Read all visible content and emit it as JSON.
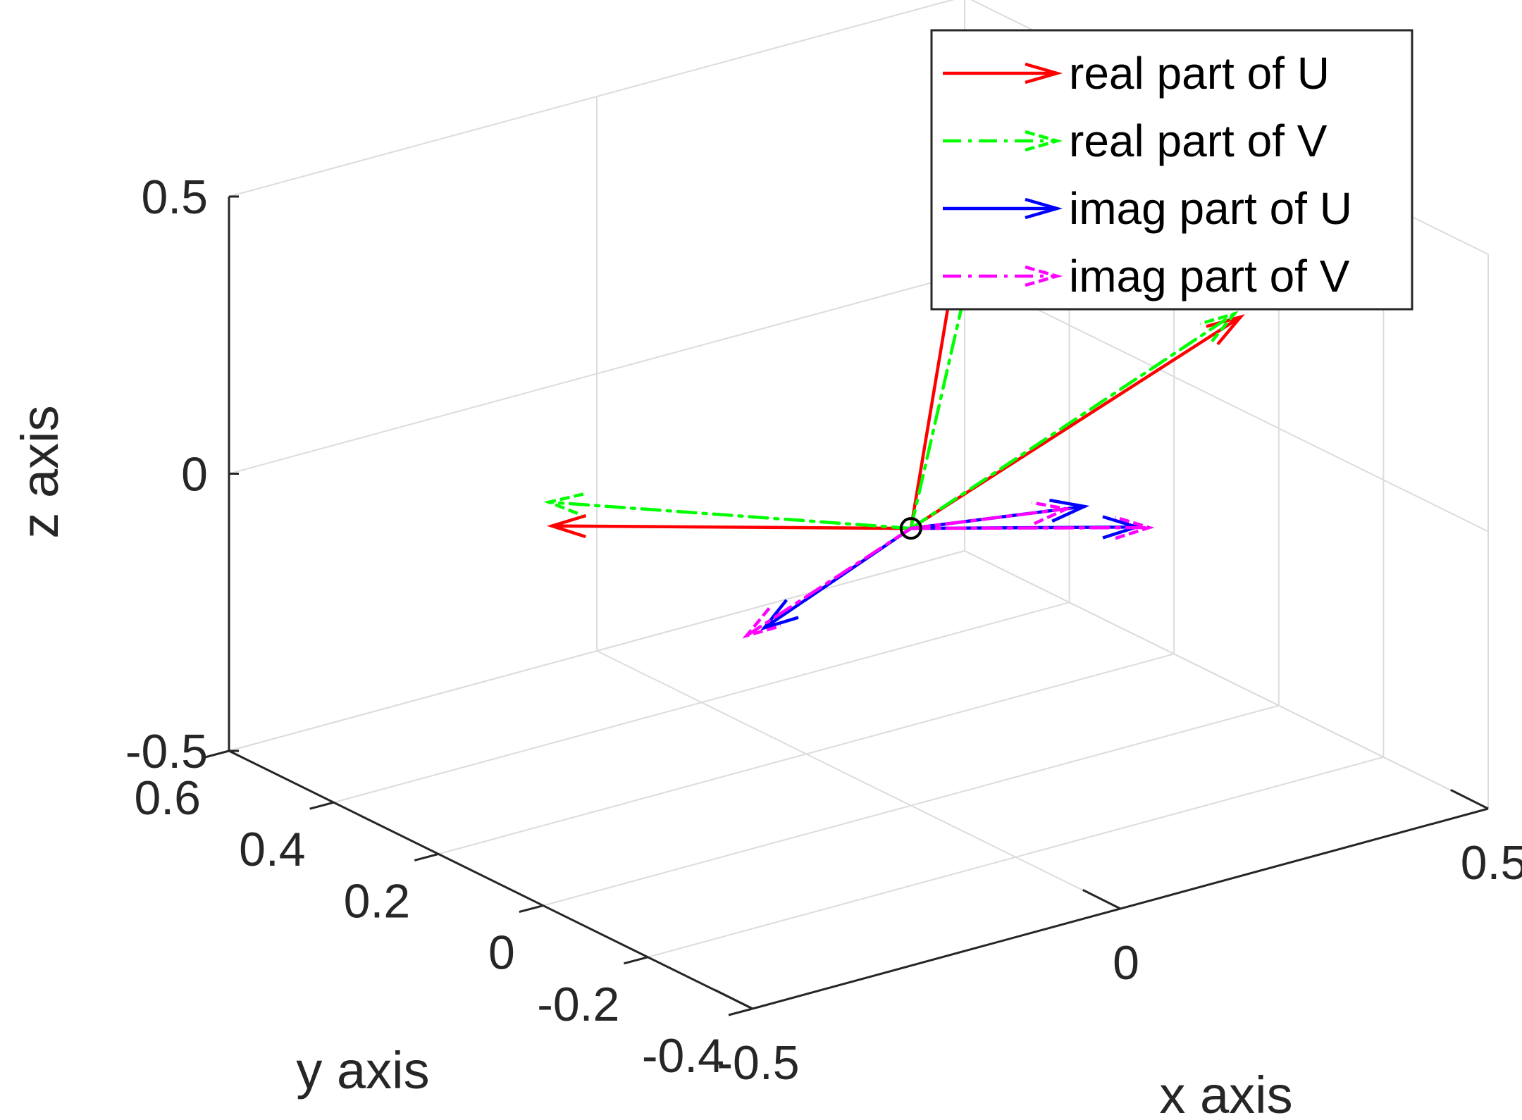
{
  "chart_data": {
    "type": "3d-vector-plot",
    "xlabel": "x axis",
    "ylabel": "y axis",
    "zlabel": "z axis",
    "xlim": [
      -0.5,
      0.5
    ],
    "ylim": [
      -0.4,
      0.6
    ],
    "zlim": [
      -0.5,
      0.5
    ],
    "x_ticks": [
      "-0.5",
      "0",
      "0.5"
    ],
    "y_ticks": [
      "0.6",
      "0.4",
      "0.2",
      "0",
      "-0.2",
      "-0.4"
    ],
    "z_ticks": [
      "0.5",
      "0",
      "-0.5"
    ],
    "grid": true,
    "legend_position": "top-right",
    "origin": [
      0,
      0,
      0
    ],
    "series": [
      {
        "name": "real part of U",
        "color": "#ff0000",
        "linestyle": "solid",
        "vectors": [
          [
            -0.31,
            0.25,
            0.0
          ],
          [
            0.27,
            -0.25,
            0.4
          ],
          [
            0.24,
            0.24,
            0.35
          ]
        ]
      },
      {
        "name": "real part of V",
        "color": "#00ff00",
        "linestyle": "dashdot",
        "vectors": [
          [
            -0.3,
            0.27,
            0.03
          ],
          [
            0.29,
            -0.21,
            0.38
          ],
          [
            0.24,
            0.21,
            0.34
          ]
        ]
      },
      {
        "name": "imag part of U",
        "color": "#0000ff",
        "linestyle": "solid",
        "vectors": [
          [
            0.2,
            -0.15,
            0.0
          ],
          [
            0.05,
            0.35,
            -0.36
          ],
          [
            0.25,
            0.02,
            -0.06
          ]
        ]
      },
      {
        "name": "imag part of V",
        "color": "#ff00ff",
        "linestyle": "dashdot",
        "vectors": [
          [
            0.21,
            -0.16,
            0.0
          ],
          [
            0.04,
            0.37,
            -0.38
          ],
          [
            0.24,
            0.04,
            -0.07
          ]
        ]
      }
    ]
  }
}
